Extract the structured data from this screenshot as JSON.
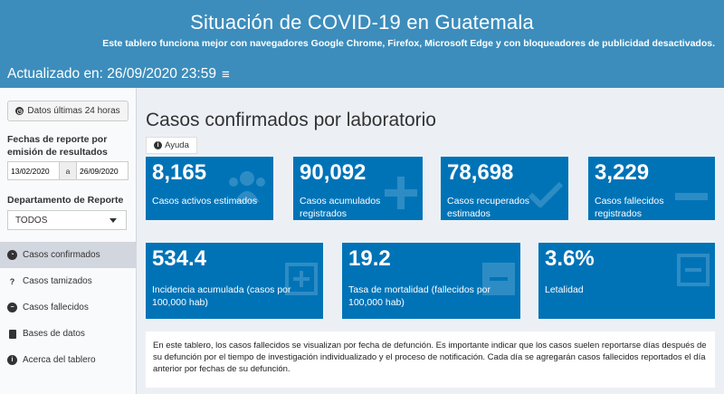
{
  "header": {
    "title": "Situación de COVID-19 en Guatemala",
    "subtitle": "Este tablero funciona mejor con navegadores Google Chrome, Firefox, Microsoft Edge y con bloqueadores de publicidad desactivados.",
    "updated": "Actualizado en: 26/09/2020 23:59",
    "menu_glyph": "≡"
  },
  "sidebar": {
    "btn_last24": "Datos últimas 24 horas",
    "dates_label": "Fechas de reporte por emisión de resultados",
    "date_from": "13/02/2020",
    "date_sep": "a",
    "date_to": "26/09/2020",
    "dept_label": "Departamento de Reporte",
    "dept_value": "TODOS",
    "menu": [
      {
        "label": "Casos confirmados",
        "icon": "dashboard-icon"
      },
      {
        "label": "Casos tamizados",
        "icon": "question-icon"
      },
      {
        "label": "Casos fallecidos",
        "icon": "minus-circle-icon"
      },
      {
        "label": "Bases de datos",
        "icon": "file-icon"
      },
      {
        "label": "Acerca del tablero",
        "icon": "info-icon"
      }
    ]
  },
  "main": {
    "title": "Casos confirmados por laboratorio",
    "help": "Ayuda",
    "cards_row1": [
      {
        "value": "8,165",
        "label": "Casos activos estimados",
        "icon": "users-icon"
      },
      {
        "value": "90,092",
        "label": "Casos acumulados registrados",
        "icon": "plus-icon"
      },
      {
        "value": "78,698",
        "label": "Casos recuperados estimados",
        "icon": "check-icon"
      },
      {
        "value": "3,229",
        "label": "Casos fallecidos registrados",
        "icon": "minus-icon"
      }
    ],
    "cards_row2": [
      {
        "value": "534.4",
        "label": "Incidencia acumulada (casos por 100,000 hab)",
        "icon": "plus-square-icon"
      },
      {
        "value": "19.2",
        "label": "Tasa de mortalidad (fallecidos por 100,000 hab)",
        "icon": "minus-square-icon"
      },
      {
        "value": "3.6%",
        "label": "Letalidad",
        "icon": "minus-square-icon"
      }
    ],
    "note": "En este tablero, los casos fallecidos se visualizan por fecha de defunción. Es importante indicar que los casos suelen reportarse días después de su defunción por el tiempo de investigación individualizado y el proceso de notificación. Cada día se agregarán casos fallecidos reportados el día anterior por fechas de su defunción."
  },
  "colors": {
    "header": "#3c8dbc",
    "card": "#0073b7",
    "background": "#ecf0f5"
  }
}
